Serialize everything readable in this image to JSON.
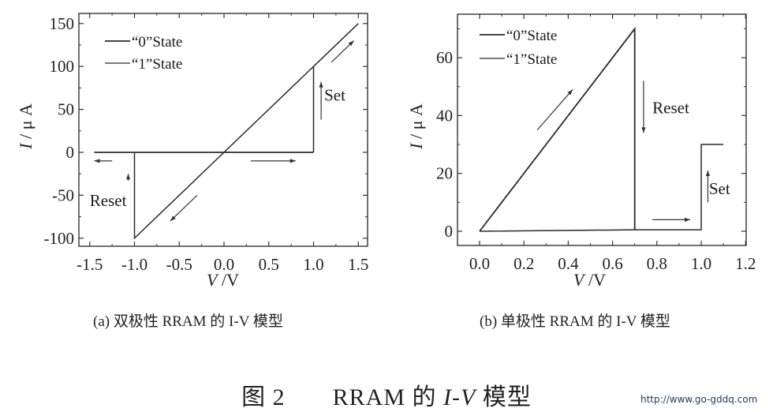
{
  "chart_data": [
    {
      "id": "a",
      "type": "line",
      "title": "",
      "caption": "(a) 双极性 RRAM 的 I-V 模型",
      "xlabel": "V /V",
      "ylabel": "I / μ A",
      "xlim": [
        -1.5,
        1.5
      ],
      "ylim": [
        -110,
        160
      ],
      "xticks": [
        -1.5,
        -1.0,
        -0.5,
        0.0,
        0.5,
        1.0,
        1.5
      ],
      "xtick_labels": [
        "-1.5",
        "-1.0",
        "-0.5",
        "0.0",
        "0.5",
        "1.0",
        "1.5"
      ],
      "yticks": [
        -100,
        -50,
        0,
        50,
        100,
        150
      ],
      "ytick_labels": [
        "-100",
        "-50",
        "0",
        "50",
        "100",
        "150"
      ],
      "grid": false,
      "legend": {
        "position": "upper-left",
        "entries": [
          "“0”State",
          "“1”State"
        ]
      },
      "series": [
        {
          "name": "“0”State",
          "x": [
            -1.45,
            -1.0,
            0.0,
            1.0
          ],
          "y": [
            0,
            0,
            0,
            0
          ]
        },
        {
          "name": "“1”State",
          "x": [
            1.0,
            1.0,
            1.5,
            -1.0,
            -1.0
          ],
          "y": [
            0,
            100,
            150,
            -100,
            0
          ]
        }
      ],
      "annotations": [
        {
          "text": "Set",
          "x": 1.12,
          "y": 60,
          "arrow": "up"
        },
        {
          "text": "Reset",
          "x": -1.2,
          "y": -55,
          "arrow": "up"
        },
        {
          "text": "",
          "arrow": "right",
          "x": [
            0.3,
            0.8
          ],
          "y": -10
        },
        {
          "text": "",
          "arrow": "left",
          "x": [
            -1.25,
            -1.45
          ],
          "y": -10
        },
        {
          "text": "",
          "arrow": "up-right",
          "x": [
            1.2,
            1.45
          ],
          "y": [
            105,
            130
          ]
        },
        {
          "text": "",
          "arrow": "down-left",
          "x": [
            -0.3,
            -0.6
          ],
          "y": [
            -50,
            -80
          ]
        }
      ]
    },
    {
      "id": "b",
      "type": "line",
      "title": "",
      "caption": "(b) 单极性 RRAM 的 I-V 模型",
      "xlabel": "V /V",
      "ylabel": "I / μ A",
      "xlim": [
        -0.1,
        1.2
      ],
      "ylim": [
        -5,
        75
      ],
      "xticks": [
        0.0,
        0.2,
        0.4,
        0.6,
        0.8,
        1.0,
        1.2
      ],
      "xtick_labels": [
        "0.0",
        "0.2",
        "0.4",
        "0.6",
        "0.8",
        "1.0",
        "1.2"
      ],
      "yticks": [
        0,
        20,
        40,
        60
      ],
      "ytick_labels": [
        "0",
        "20",
        "40",
        "60"
      ],
      "grid": false,
      "legend": {
        "position": "upper-left",
        "entries": [
          "“0”State",
          "“1”State"
        ]
      },
      "series": [
        {
          "name": "“1”State",
          "x": [
            0.0,
            0.7,
            0.7
          ],
          "y": [
            0,
            70,
            0.5
          ]
        },
        {
          "name": "“0”State",
          "x": [
            0.0,
            0.7,
            1.0,
            1.0,
            1.1
          ],
          "y": [
            0,
            0.5,
            0.5,
            30,
            30
          ]
        }
      ],
      "annotations": [
        {
          "text": "Reset",
          "x": 0.75,
          "y": 43,
          "arrow": "down"
        },
        {
          "text": "Set",
          "x": 1.03,
          "y": 15,
          "arrow": "up"
        },
        {
          "text": "",
          "arrow": "up-right",
          "x": [
            0.26,
            0.42
          ],
          "y": [
            35,
            49
          ]
        },
        {
          "text": "",
          "arrow": "right",
          "x": [
            0.78,
            0.95
          ],
          "y": 4
        }
      ]
    }
  ],
  "captions": {
    "a": "(a) 双极性 RRAM 的 I-V 模型",
    "b": "(b) 单极性 RRAM 的 I-V 模型",
    "figure_number": "图 2",
    "figure_title_pre": "RRAM 的 ",
    "figure_title_i": "I",
    "figure_title_dash": "-",
    "figure_title_v": "V",
    "figure_title_post": " 模型"
  },
  "watermark": "http://www.go-gddq.com"
}
